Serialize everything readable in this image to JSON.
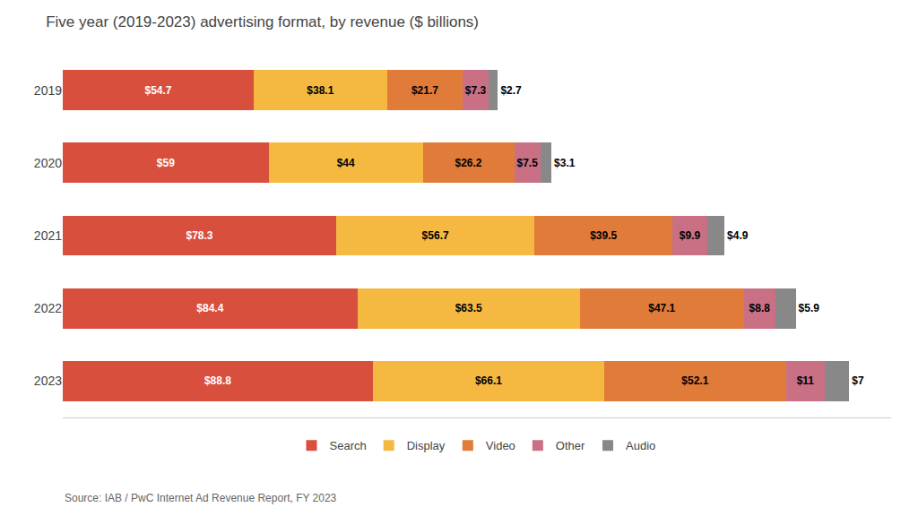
{
  "chart_data": {
    "type": "bar",
    "orientation": "horizontal",
    "stacked": true,
    "title": "Five year (2019-2023) advertising format, by revenue ($ billions)",
    "annotations": [
      "Source: IAB / PwC Internet Ad Revenue Report, FY 2023"
    ],
    "categories": [
      "2019",
      "2020",
      "2021",
      "2022",
      "2023"
    ],
    "series": [
      {
        "name": "Search",
        "color": "#d94f3d",
        "values": [
          54.7,
          59,
          78.3,
          84.4,
          88.8
        ],
        "value_labels": [
          "$54.7",
          "$59",
          "$78.3",
          "$84.4",
          "$88.8"
        ]
      },
      {
        "name": "Display",
        "color": "#f5b942",
        "values": [
          38.1,
          44,
          56.7,
          63.5,
          66.1
        ],
        "value_labels": [
          "$38.1",
          "$44",
          "$56.7",
          "$63.5",
          "$66.1"
        ]
      },
      {
        "name": "Video",
        "color": "#e07b39",
        "values": [
          21.7,
          26.2,
          39.5,
          47.1,
          52.1
        ],
        "value_labels": [
          "$21.7",
          "$26.2",
          "$39.5",
          "$47.1",
          "$52.1"
        ]
      },
      {
        "name": "Other",
        "color": "#c97085",
        "values": [
          7.3,
          7.5,
          9.9,
          8.8,
          11
        ],
        "value_labels": [
          "$7.3",
          "$7.5",
          "$9.9",
          "$8.8",
          "$11"
        ]
      },
      {
        "name": "Audio",
        "color": "#888888",
        "values": [
          2.7,
          3.1,
          4.9,
          5.9,
          7
        ],
        "value_labels": [
          "$2.7",
          "$3.1",
          "$4.9",
          "$5.9",
          "$7"
        ]
      }
    ],
    "xlim": [
      0,
      237
    ],
    "grid": false,
    "legend": "bottom",
    "data_labels": true,
    "tick_labels": "y"
  }
}
